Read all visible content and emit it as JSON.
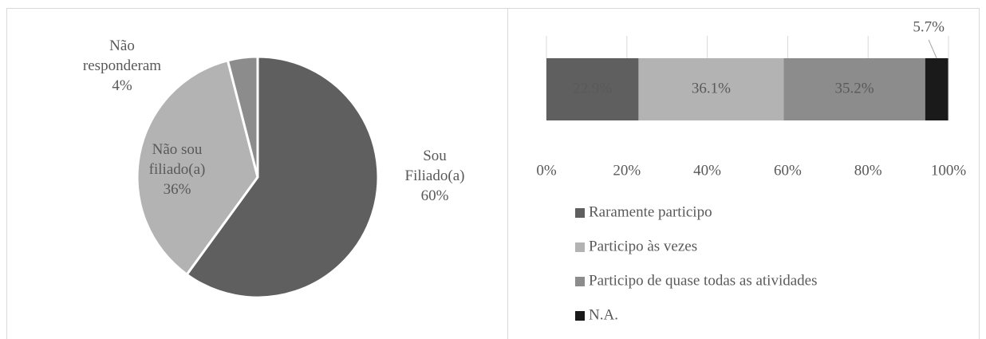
{
  "chart_data": [
    {
      "type": "pie",
      "categories": [
        "Sou Filiado(a)",
        "Não sou filiado(a)",
        "Não responderam"
      ],
      "values": [
        60,
        36,
        4
      ],
      "value_labels": [
        "60%",
        "36%",
        "4%"
      ],
      "colors": [
        "#5f5f5f",
        "#b3b3b3",
        "#8c8c8c"
      ]
    },
    {
      "type": "stacked_bar",
      "orientation": "horizontal",
      "series": [
        {
          "name": "Raramente participo",
          "color": "#5f5f5f",
          "values": [
            22.9
          ],
          "value_labels": [
            "22.9%"
          ]
        },
        {
          "name": "Participo às vezes",
          "color": "#b3b3b3",
          "values": [
            36.1
          ],
          "value_labels": [
            "36.1%"
          ]
        },
        {
          "name": "Participo de quase todas as atividades",
          "color": "#8c8c8c",
          "values": [
            35.2
          ],
          "value_labels": [
            "35.2%"
          ]
        },
        {
          "name": "N.A.",
          "color": "#1a1a1a",
          "values": [
            5.7
          ],
          "value_labels": [
            "5.7%"
          ]
        }
      ],
      "xlim": [
        0,
        100
      ],
      "xticks": [
        {
          "value": 0,
          "label": "0%"
        },
        {
          "value": 20,
          "label": "20%"
        },
        {
          "value": 40,
          "label": "40%"
        },
        {
          "value": 60,
          "label": "60%"
        },
        {
          "value": 80,
          "label": "80%"
        },
        {
          "value": 100,
          "label": "100%"
        }
      ],
      "grid": true,
      "legend": "bottom"
    }
  ]
}
